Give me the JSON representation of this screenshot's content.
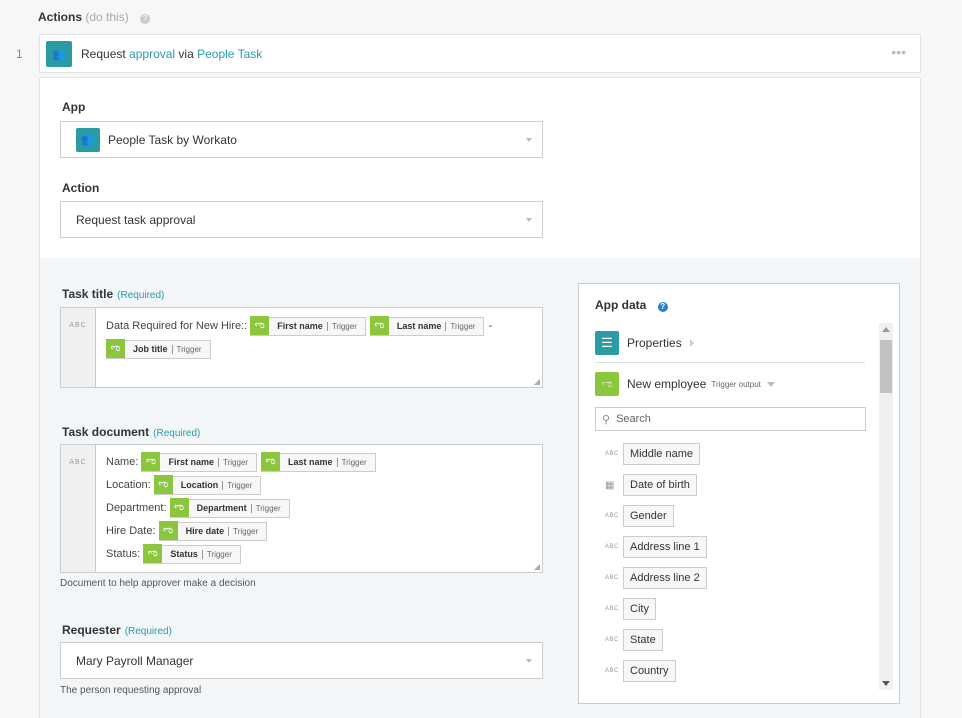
{
  "header": {
    "title": "Actions",
    "subtitle": "(do this)",
    "help_icon": "question-circle-icon"
  },
  "step": {
    "number": "1",
    "text_prefix": "Request",
    "text_link1": "approval",
    "text_mid": "via",
    "text_link2": "People Task",
    "more_icon": "ellipsis-icon"
  },
  "app": {
    "label": "App",
    "value": "People Task by Workato",
    "icon": "people-icon"
  },
  "action": {
    "label": "Action",
    "value": "Request task approval"
  },
  "task_title": {
    "label": "Task title",
    "required": "(Required)",
    "type": "ABC",
    "text": "Data Required for New Hire::",
    "pills": [
      {
        "name": "First name",
        "src": "Trigger"
      },
      {
        "name": "Last name",
        "src": "Trigger"
      }
    ],
    "sep": "-",
    "pills2": [
      {
        "name": "Job title",
        "src": "Trigger"
      }
    ]
  },
  "task_document": {
    "label": "Task document",
    "required": "(Required)",
    "type": "ABC",
    "lines": [
      {
        "label": "Name:",
        "pills": [
          {
            "name": "First name",
            "src": "Trigger"
          },
          {
            "name": "Last name",
            "src": "Trigger"
          }
        ]
      },
      {
        "label": "Location:",
        "pills": [
          {
            "name": "Location",
            "src": "Trigger"
          }
        ]
      },
      {
        "label": "Department:",
        "pills": [
          {
            "name": "Department",
            "src": "Trigger"
          }
        ]
      },
      {
        "label": "Hire Date:",
        "pills": [
          {
            "name": "Hire date",
            "src": "Trigger"
          }
        ]
      },
      {
        "label": "Status:",
        "pills": [
          {
            "name": "Status",
            "src": "Trigger"
          }
        ]
      }
    ],
    "hint": "Document to help approver make a decision"
  },
  "requester": {
    "label": "Requester",
    "required": "(Required)",
    "value": "Mary Payroll Manager",
    "hint": "The person requesting approval"
  },
  "app_data": {
    "title": "App data",
    "properties": "Properties",
    "source": "New employee",
    "source_tag": "Trigger output",
    "search_placeholder": "Search",
    "fields": [
      {
        "type": "ABC",
        "name": "Middle name"
      },
      {
        "type": "date",
        "name": "Date of birth"
      },
      {
        "type": "ABC",
        "name": "Gender"
      },
      {
        "type": "ABC",
        "name": "Address line 1"
      },
      {
        "type": "ABC",
        "name": "Address line 2"
      },
      {
        "type": "ABC",
        "name": "City"
      },
      {
        "type": "ABC",
        "name": "State"
      },
      {
        "type": "ABC",
        "name": "Country"
      }
    ]
  },
  "colors": {
    "teal": "#2a9aa5",
    "green": "#8cc63f"
  }
}
